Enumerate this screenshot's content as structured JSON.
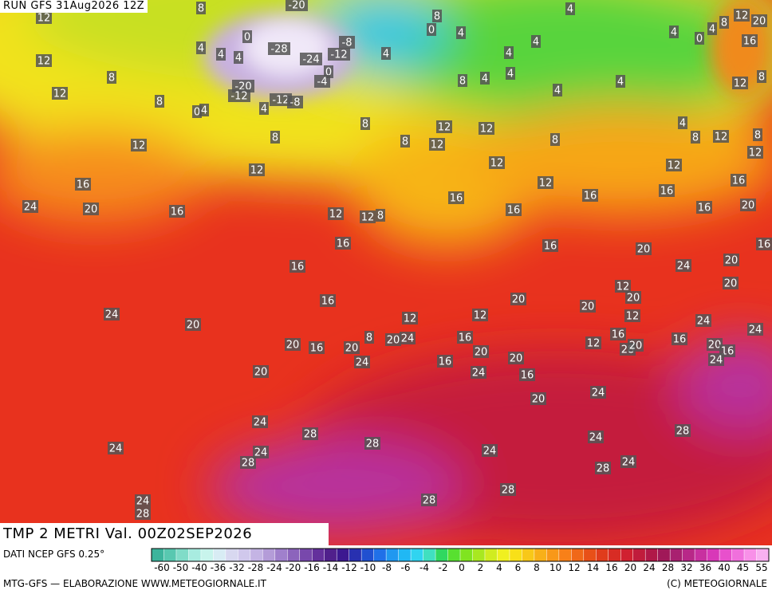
{
  "header": {
    "run": "RUN GFS 31Aug2026 12Z",
    "title": "TMP 2 METRI Val. 00Z02SEP2026"
  },
  "legend": {
    "source": "DATI NCEP GFS 0.25°",
    "ticks": [
      "-60",
      "-50",
      "-40",
      "-36",
      "-32",
      "-28",
      "-24",
      "-20",
      "-16",
      "-14",
      "-12",
      "-10",
      "-8",
      "-6",
      "-4",
      "-2",
      "0",
      "2",
      "4",
      "6",
      "8",
      "10",
      "12",
      "14",
      "16",
      "20",
      "24",
      "28",
      "32",
      "36",
      "40",
      "45",
      "55"
    ],
    "colors": [
      "#3cb49c",
      "#58c8b0",
      "#80dcc8",
      "#a8ece0",
      "#c8f4ec",
      "#d8ecf4",
      "#d8d8f0",
      "#d0c8ec",
      "#c4b4e4",
      "#b49cd8",
      "#a080cc",
      "#8c64bc",
      "#7848ac",
      "#64309c",
      "#50208c",
      "#3c1890",
      "#2830b0",
      "#2050d0",
      "#2070e8",
      "#2098f0",
      "#20b8f4",
      "#30d4f0",
      "#40e0c0",
      "#30d860",
      "#58e030",
      "#80e420",
      "#a8e820",
      "#d0ec20",
      "#f0f020",
      "#f8e018",
      "#f8c818",
      "#f8b018",
      "#f89818",
      "#f88018",
      "#f06818",
      "#e85018",
      "#e03c1c",
      "#d82c24",
      "#d02030",
      "#c01c3c",
      "#b01848",
      "#a01858",
      "#a82070",
      "#b82888",
      "#c830a0",
      "#d838b8",
      "#e850cc",
      "#f070dc",
      "#f890e8",
      "#f8b0f0"
    ]
  },
  "map_labels": [
    12,
    8,
    -20,
    8,
    0,
    4,
    4,
    12,
    8,
    20,
    0,
    4,
    4,
    4,
    -28,
    -8,
    -24,
    -12,
    0,
    -4,
    4,
    4,
    4,
    4,
    0,
    4,
    16,
    12,
    8,
    12,
    8,
    -20,
    -12,
    0,
    4,
    4,
    -12,
    -8,
    8,
    4,
    4,
    4,
    4,
    12,
    8,
    8,
    8,
    12,
    12,
    4,
    8,
    12,
    8,
    12,
    8,
    12,
    8,
    12,
    12,
    12,
    12,
    12,
    16,
    16,
    16,
    16,
    16,
    24,
    20,
    16,
    12,
    12,
    8,
    16,
    16,
    20,
    16,
    16,
    20,
    16,
    24,
    20,
    16,
    16,
    24,
    12,
    12,
    20,
    20,
    12,
    20,
    12,
    20,
    20,
    24,
    24,
    8,
    20,
    16,
    20,
    20,
    24,
    16,
    16,
    16,
    12,
    28,
    20,
    20,
    16,
    24,
    24,
    20,
    16,
    20,
    24,
    16,
    20,
    20,
    24,
    24,
    28,
    28,
    24,
    28,
    24,
    24,
    28,
    24,
    28,
    24,
    28,
    28,
    24,
    28
  ],
  "footer": {
    "left": "MTG-GFS — ELABORAZIONE WWW.METEOGIORNALE.IT",
    "right": "(C) METEOGIORNALE"
  }
}
